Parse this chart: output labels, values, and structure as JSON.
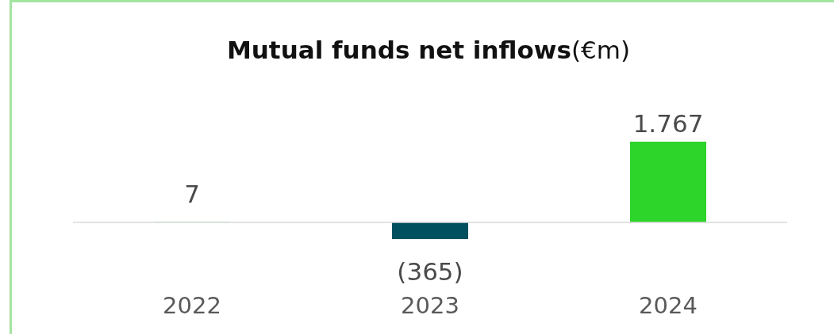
{
  "chart_data": {
    "type": "bar",
    "title": "Mutual funds net inflows",
    "subtitle": "(€m)",
    "categories": [
      "2022",
      "2023",
      "2024"
    ],
    "values": [
      7,
      -365,
      1767
    ],
    "colors": [
      "#2dd42a",
      "#00505f",
      "#2dd42a"
    ],
    "value_labels": [
      "7",
      "(365)",
      "1.767"
    ]
  }
}
